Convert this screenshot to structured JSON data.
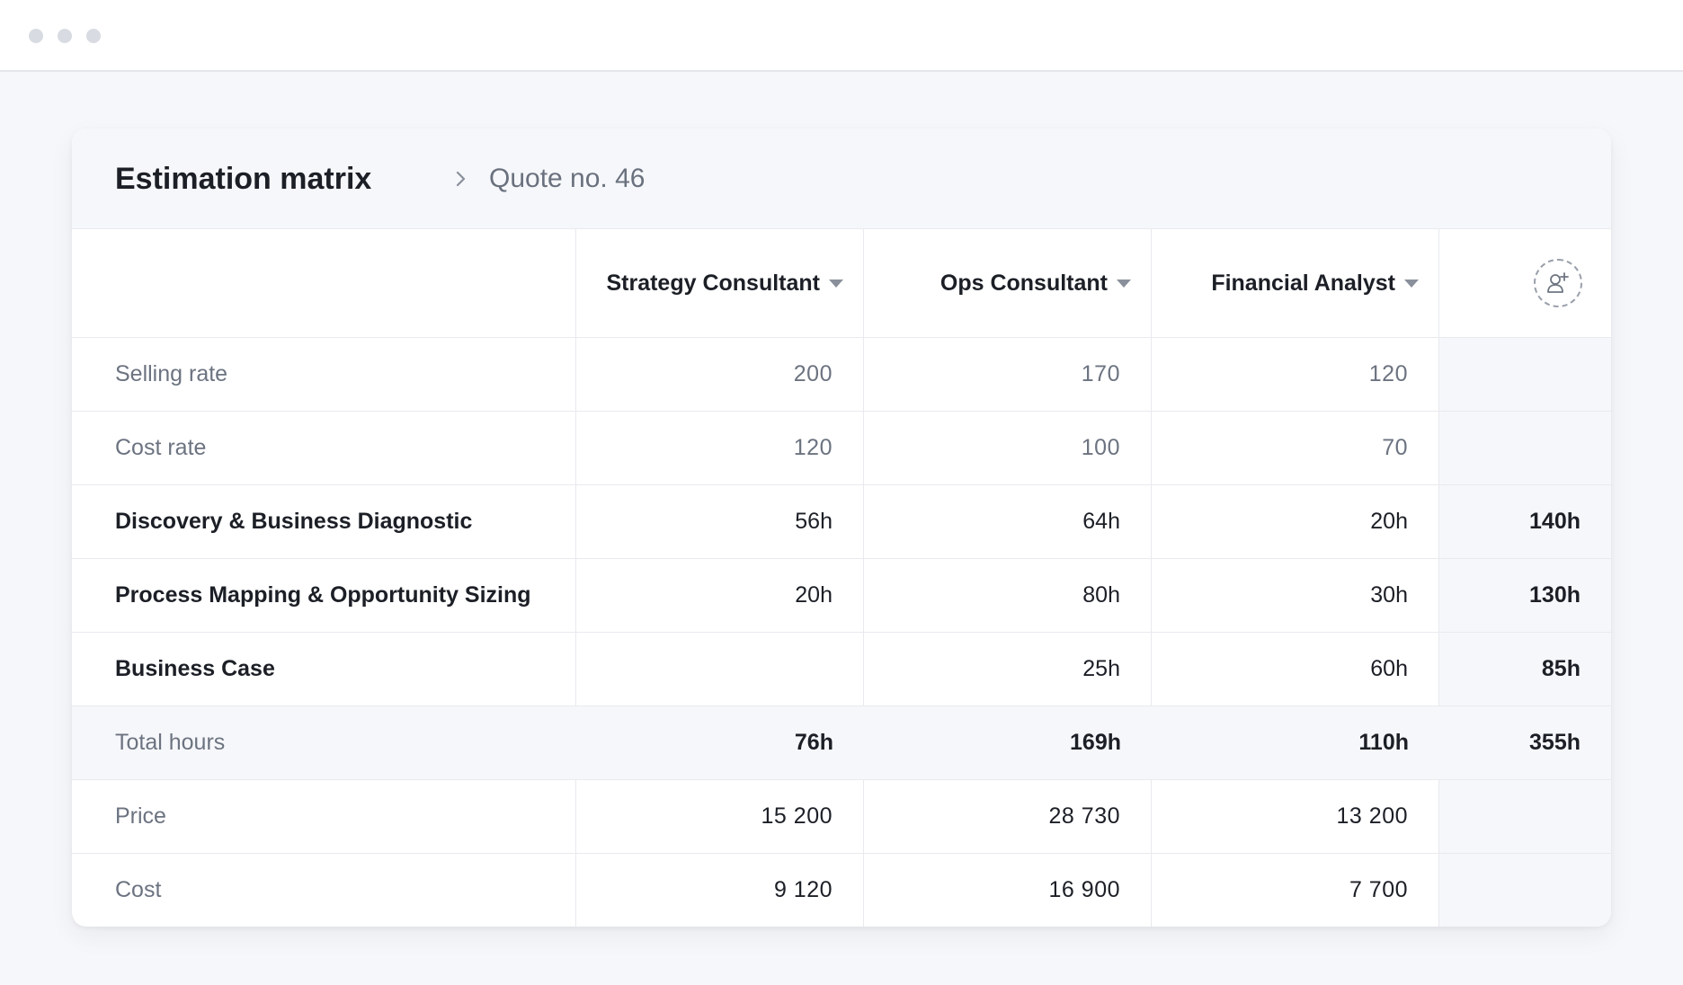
{
  "window": {},
  "header": {
    "title": "Estimation matrix",
    "breadcrumb_separator_icon": "chevron-right-icon",
    "subtitle": "Quote no. 46"
  },
  "columns": [
    {
      "label": "Strategy Consultant",
      "icon": "caret-down-icon"
    },
    {
      "label": "Ops Consultant",
      "icon": "caret-down-icon"
    },
    {
      "label": "Financial Analyst",
      "icon": "caret-down-icon"
    }
  ],
  "add_column_icon": "add-person-icon",
  "rows": {
    "selling_rate": {
      "label": "Selling rate",
      "values": [
        "200",
        "170",
        "120"
      ],
      "total": ""
    },
    "cost_rate": {
      "label": "Cost rate",
      "values": [
        "120",
        "100",
        "70"
      ],
      "total": ""
    },
    "discovery": {
      "label": "Discovery & Business Diagnostic",
      "values": [
        "56h",
        "64h",
        "20h"
      ],
      "total": "140h"
    },
    "process_mapping": {
      "label": "Process Mapping & Opportunity Sizing",
      "values": [
        "20h",
        "80h",
        "30h"
      ],
      "total": "130h"
    },
    "business_case": {
      "label": "Business Case",
      "values": [
        "",
        "25h",
        "60h"
      ],
      "total": "85h"
    },
    "total_hours": {
      "label": "Total hours",
      "values": [
        "76h",
        "169h",
        "110h"
      ],
      "total": "355h"
    },
    "price": {
      "label": "Price",
      "values": [
        "15 200",
        "28 730",
        "13 200"
      ],
      "total": ""
    },
    "cost": {
      "label": "Cost",
      "values": [
        "9 120",
        "16 900",
        "7 700"
      ],
      "total": ""
    }
  },
  "colors": {
    "page_background": "#f6f7fa",
    "card_background": "#ffffff",
    "text_primary": "#1c1f26",
    "text_muted": "#6c7380",
    "border": "#e8eaee"
  }
}
